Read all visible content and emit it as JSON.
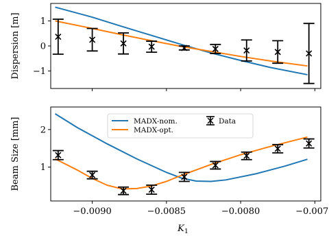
{
  "chart_data": [
    {
      "type": "line",
      "panel": "top",
      "title": "",
      "xlabel": "",
      "ylabel": "Dispersion [m]",
      "xlim": [
        -0.00928,
        -0.00746
      ],
      "ylim": [
        -1.7,
        1.7
      ],
      "xticks": [
        -0.009,
        -0.0085,
        -0.008,
        -0.0075
      ],
      "yticks": [
        -1,
        0,
        1
      ],
      "ytick_labels": [
        "−1",
        "0",
        "1"
      ],
      "grid": false,
      "series": [
        {
          "color": "#1f77b4",
          "x": [
            -0.00925,
            -0.009,
            -0.0088,
            -0.0086,
            -0.0084,
            -0.0082,
            -0.008,
            -0.0078,
            -0.00755
          ],
          "y": [
            1.55,
            1.15,
            0.78,
            0.42,
            0.06,
            -0.28,
            -0.58,
            -0.86,
            -1.15
          ]
        },
        {
          "color": "#ff7f0e",
          "x": [
            -0.00925,
            -0.009,
            -0.0088,
            -0.0086,
            -0.0084,
            -0.0082,
            -0.008,
            -0.0078,
            -0.00755
          ],
          "y": [
            1.0,
            0.7,
            0.45,
            0.21,
            -0.02,
            -0.22,
            -0.42,
            -0.6,
            -0.8
          ]
        }
      ],
      "errorbars": {
        "color": "#000000",
        "x": [
          -0.00923,
          -0.009,
          -0.00879,
          -0.0086,
          -0.00838,
          -0.00817,
          -0.00796,
          -0.00775,
          -0.00754
        ],
        "y": [
          0.37,
          0.25,
          0.1,
          -0.03,
          -0.08,
          -0.12,
          -0.18,
          -0.24,
          -0.3
        ],
        "err": [
          0.7,
          0.45,
          0.42,
          0.22,
          0.08,
          0.18,
          0.42,
          0.45,
          1.2
        ]
      }
    },
    {
      "type": "line",
      "panel": "bottom",
      "title": "",
      "xlabel": "K",
      "xlabel_sub": "1",
      "ylabel": "Beam Size [mm]",
      "xlim": [
        -0.00928,
        -0.00746
      ],
      "ylim": [
        0.1,
        2.6
      ],
      "xticks": [
        -0.009,
        -0.0085,
        -0.008,
        -0.0075
      ],
      "xtick_labels": [
        "−0.0090",
        "−0.0085",
        "−0.0080",
        "−0.0075"
      ],
      "yticks": [
        1,
        2
      ],
      "ytick_labels": [
        "1",
        "2"
      ],
      "grid": false,
      "legend_position": "top-center",
      "series": [
        {
          "name": "MADX-nom.",
          "color": "#1f77b4",
          "x": [
            -0.00925,
            -0.0091,
            -0.0089,
            -0.0087,
            -0.0085,
            -0.0084,
            -0.0083,
            -0.0082,
            -0.0081,
            -0.0079,
            -0.0077,
            -0.00755
          ],
          "y": [
            2.42,
            2.05,
            1.62,
            1.22,
            0.86,
            0.71,
            0.63,
            0.62,
            0.66,
            0.82,
            1.03,
            1.21
          ]
        },
        {
          "name": "MADX-opt.",
          "color": "#ff7f0e",
          "x": [
            -0.00925,
            -0.0091,
            -0.009,
            -0.0089,
            -0.0088,
            -0.0087,
            -0.0086,
            -0.0085,
            -0.0084,
            -0.0082,
            -0.008,
            -0.0078,
            -0.00755
          ],
          "y": [
            1.22,
            0.92,
            0.7,
            0.52,
            0.42,
            0.43,
            0.5,
            0.62,
            0.78,
            1.07,
            1.33,
            1.55,
            1.8
          ]
        }
      ],
      "errorbars": {
        "name": "Data",
        "color": "#000000",
        "x": [
          -0.00923,
          -0.009,
          -0.00879,
          -0.0086,
          -0.00838,
          -0.00817,
          -0.00796,
          -0.00775,
          -0.00754
        ],
        "y": [
          1.32,
          0.79,
          0.37,
          0.4,
          0.74,
          1.05,
          1.3,
          1.49,
          1.63
        ],
        "err": [
          0.12,
          0.1,
          0.1,
          0.12,
          0.12,
          0.1,
          0.1,
          0.11,
          0.12
        ]
      },
      "legend": {
        "entries": [
          "MADX-nom.",
          "MADX-opt.",
          "Data"
        ]
      }
    }
  ]
}
